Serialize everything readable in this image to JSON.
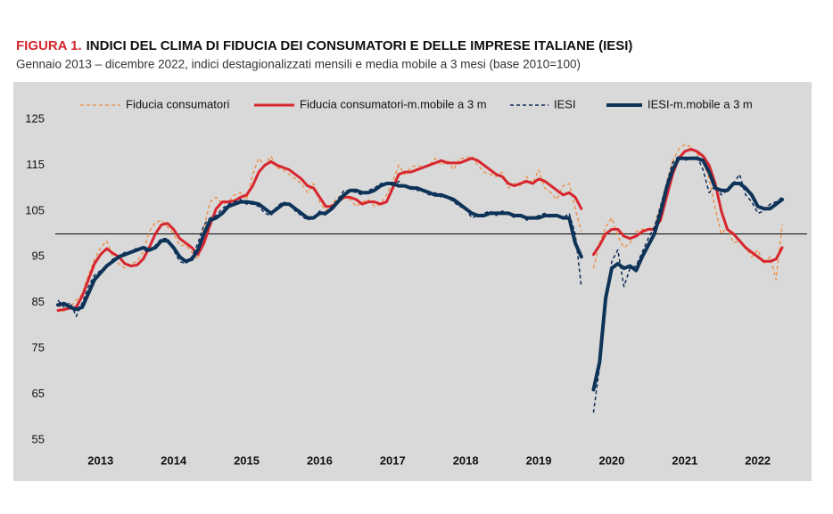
{
  "chart_data": {
    "type": "line",
    "figure_label": "FIGURA 1.",
    "title": "INDICI DEL CLIMA DI FIDUCIA DEI CONSUMATORI E DELLE IMPRESE ITALIANE (IESI)",
    "subtitle": "Gennaio 2013 – dicembre 2022, indici destagionalizzati mensili e media mobile a 3 mesi (base 2010=100)",
    "categories": [
      null,
      null,
      null,
      null,
      null,
      null,
      null,
      "2013",
      null,
      null,
      null,
      null,
      null,
      null,
      null,
      null,
      null,
      null,
      null,
      "2014",
      null,
      null,
      null,
      null,
      null,
      null,
      null,
      null,
      null,
      null,
      null,
      "2015",
      null,
      null,
      null,
      null,
      null,
      null,
      null,
      null,
      null,
      null,
      null,
      "2016",
      null,
      null,
      null,
      null,
      null,
      null,
      null,
      null,
      null,
      null,
      null,
      "2017",
      null,
      null,
      null,
      null,
      null,
      null,
      null,
      null,
      null,
      null,
      null,
      "2018",
      null,
      null,
      null,
      null,
      null,
      null,
      null,
      null,
      null,
      null,
      null,
      "2019",
      null,
      null,
      null,
      null,
      null,
      null,
      null,
      null,
      null,
      null,
      null,
      "2020",
      null,
      null,
      null,
      null,
      null,
      null,
      null,
      null,
      null,
      null,
      null,
      "2021",
      null,
      null,
      null,
      null,
      null,
      null,
      null,
      null,
      null,
      null,
      null,
      "2022",
      null,
      null,
      null,
      null
    ],
    "ylim": [
      55,
      125
    ],
    "yticks": [
      55,
      65,
      75,
      85,
      95,
      105,
      115,
      125
    ],
    "hline": 100,
    "grid": false,
    "series": [
      {
        "name": "Fiducia consumatori",
        "color": "#ee8a3c",
        "dashed": true,
        "width": 1.3,
        "values": [
          84.5,
          83.0,
          84.0,
          85.5,
          87.0,
          91.0,
          94.5,
          97.0,
          98.5,
          95.0,
          93.5,
          92.5,
          93.5,
          94.0,
          96.0,
          100.5,
          102.5,
          103.0,
          101.5,
          100.0,
          97.5,
          97.5,
          96.0,
          94.5,
          101.5,
          107.0,
          108.0,
          106.5,
          107.0,
          108.5,
          109.0,
          107.5,
          113.0,
          116.5,
          115.0,
          117.0,
          114.5,
          114.0,
          113.0,
          112.0,
          111.0,
          109.0,
          111.0,
          107.0,
          105.0,
          106.5,
          108.0,
          108.5,
          107.5,
          106.0,
          107.0,
          107.5,
          106.0,
          106.5,
          108.5,
          111.5,
          115.0,
          113.0,
          114.5,
          115.0,
          114.5,
          115.0,
          116.5,
          115.0,
          116.0,
          114.0,
          116.5,
          116.5,
          117.0,
          115.0,
          113.5,
          113.0,
          112.5,
          113.5,
          110.0,
          111.0,
          110.5,
          112.5,
          111.0,
          114.0,
          110.0,
          109.0,
          107.5,
          110.5,
          111.0,
          105.5,
          100.5,
          null,
          92.5,
          98.0,
          101.5,
          103.5,
          99.5,
          97.0,
          98.0,
          100.5,
          101.0,
          101.0,
          101.5,
          106.0,
          111.0,
          116.0,
          118.5,
          119.5,
          119.0,
          117.5,
          116.0,
          112.0,
          105.5,
          100.0,
          101.5,
          98.0,
          98.5,
          97.0,
          95.0,
          96.5,
          93.5,
          95.0,
          90.0,
          102.0
        ]
      },
      {
        "name": "Fiducia consumatori-m.mobile a 3 m",
        "color": "#d7262e",
        "dashed": false,
        "width": 3,
        "values": [
          83.3,
          83.5,
          83.8,
          84.0,
          86.5,
          90.0,
          93.5,
          95.5,
          96.8,
          95.8,
          95.0,
          93.5,
          93.0,
          93.2,
          94.5,
          97.0,
          100.0,
          102.0,
          102.3,
          101.0,
          99.0,
          98.0,
          97.0,
          95.5,
          98.0,
          102.0,
          105.5,
          107.0,
          107.0,
          107.2,
          108.0,
          108.5,
          110.5,
          113.5,
          115.0,
          115.8,
          115.0,
          114.5,
          114.0,
          113.0,
          112.0,
          110.5,
          110.0,
          108.0,
          106.0,
          106.0,
          107.0,
          108.0,
          108.0,
          107.5,
          106.5,
          107.0,
          107.0,
          106.5,
          107.0,
          110.0,
          113.0,
          113.5,
          113.5,
          114.0,
          114.5,
          115.0,
          115.5,
          116.0,
          115.5,
          115.5,
          115.5,
          116.0,
          116.5,
          116.0,
          115.0,
          114.0,
          113.0,
          112.5,
          111.0,
          110.5,
          111.0,
          111.5,
          111.0,
          112.0,
          111.5,
          110.5,
          109.5,
          108.5,
          109.0,
          108.0,
          105.5,
          null,
          95.5,
          97.5,
          100.0,
          101.0,
          101.0,
          99.5,
          99.0,
          99.5,
          100.5,
          101.0,
          101.0,
          103.0,
          108.0,
          113.0,
          116.5,
          118.0,
          118.5,
          118.0,
          117.0,
          115.0,
          111.0,
          105.0,
          101.0,
          100.0,
          98.5,
          97.0,
          96.0,
          95.0,
          94.0,
          94.0,
          94.5,
          97.0
        ]
      },
      {
        "name": "IESI",
        "color": "#0c2a57",
        "dashed": true,
        "width": 1.5,
        "values": [
          85.5,
          84.0,
          85.0,
          82.0,
          85.0,
          88.5,
          91.0,
          92.0,
          93.0,
          94.5,
          95.0,
          96.0,
          96.0,
          97.0,
          96.5,
          96.0,
          97.5,
          99.0,
          99.0,
          96.5,
          94.0,
          93.5,
          95.0,
          98.0,
          102.0,
          103.5,
          104.0,
          105.5,
          106.5,
          107.0,
          107.5,
          106.5,
          106.5,
          106.0,
          104.5,
          104.0,
          106.0,
          107.0,
          106.5,
          105.0,
          104.0,
          103.0,
          103.5,
          105.0,
          104.0,
          106.0,
          107.5,
          109.5,
          109.5,
          109.0,
          108.5,
          109.5,
          110.0,
          111.0,
          111.0,
          110.5,
          111.5,
          110.0,
          110.5,
          109.5,
          109.5,
          108.5,
          109.0,
          108.0,
          108.0,
          107.0,
          106.0,
          105.5,
          103.5,
          104.0,
          104.5,
          105.0,
          104.0,
          105.0,
          104.5,
          103.5,
          104.5,
          103.0,
          103.5,
          104.0,
          104.5,
          103.5,
          104.0,
          103.5,
          104.5,
          100.0,
          88.5,
          null,
          61.0,
          71.0,
          85.0,
          94.0,
          96.5,
          88.5,
          92.5,
          93.0,
          96.0,
          99.0,
          101.5,
          106.0,
          111.0,
          115.5,
          117.0,
          116.0,
          116.5,
          117.0,
          114.0,
          109.0,
          110.5,
          108.5,
          109.5,
          111.0,
          113.0,
          108.5,
          107.0,
          104.5,
          105.0,
          106.5,
          107.0,
          108.0
        ]
      },
      {
        "name": "IESI-m.mobile a 3 m",
        "color": "#0e3358",
        "dashed": false,
        "width": 4,
        "values": [
          84.5,
          84.8,
          84.0,
          83.5,
          84.0,
          87.0,
          90.0,
          91.5,
          93.0,
          94.0,
          95.0,
          95.5,
          96.0,
          96.5,
          97.0,
          96.5,
          97.0,
          98.5,
          98.5,
          97.0,
          95.0,
          94.0,
          94.5,
          96.5,
          100.0,
          103.0,
          103.5,
          104.5,
          106.0,
          106.5,
          107.0,
          107.0,
          106.8,
          106.5,
          105.5,
          104.5,
          105.5,
          106.5,
          106.5,
          105.5,
          104.5,
          103.5,
          103.5,
          104.5,
          104.5,
          105.5,
          107.0,
          108.5,
          109.5,
          109.5,
          109.0,
          109.0,
          109.5,
          110.5,
          111.0,
          111.0,
          110.5,
          110.5,
          110.0,
          110.0,
          109.5,
          109.0,
          108.5,
          108.5,
          108.0,
          107.5,
          106.5,
          105.5,
          104.5,
          104.0,
          104.0,
          104.5,
          104.5,
          104.5,
          104.5,
          104.0,
          104.0,
          103.5,
          103.5,
          103.5,
          104.0,
          104.0,
          104.0,
          103.5,
          103.5,
          98.0,
          95.0,
          null,
          66.0,
          72.0,
          86.0,
          92.5,
          93.5,
          92.5,
          93.0,
          92.0,
          95.0,
          97.5,
          100.0,
          104.5,
          110.0,
          114.0,
          116.5,
          116.5,
          116.5,
          116.5,
          116.0,
          113.5,
          110.0,
          109.5,
          109.5,
          111.0,
          111.0,
          110.0,
          108.5,
          106.0,
          105.5,
          105.5,
          106.5,
          107.5
        ]
      }
    ]
  }
}
